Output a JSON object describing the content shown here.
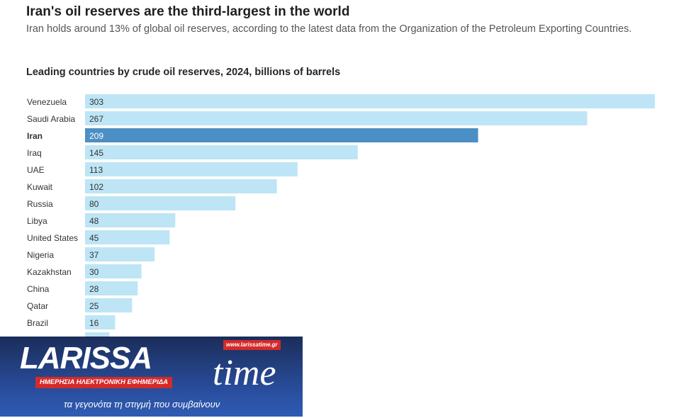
{
  "header": {
    "title": "Iran's oil reserves are the third-largest in the world",
    "subtitle": "Iran holds around 13% of global oil reserves, according to the latest data from the Organization of the Petroleum Exporting Countries."
  },
  "chart_data": {
    "type": "bar",
    "orientation": "horizontal",
    "title": "Leading countries by crude oil reserves, 2024, billions of barrels",
    "categories": [
      "Venezuela",
      "Saudi Arabia",
      "Iran",
      "Iraq",
      "UAE",
      "Kuwait",
      "Russia",
      "Libya",
      "United States",
      "Nigeria",
      "Kazakhstan",
      "China",
      "Qatar",
      "Brazil",
      ""
    ],
    "values": [
      303,
      267,
      209,
      145,
      113,
      102,
      80,
      48,
      45,
      37,
      30,
      28,
      25,
      16,
      13
    ],
    "value_labels": [
      "303",
      "267",
      "209",
      "145",
      "113",
      "102",
      "80",
      "48",
      "45",
      "37",
      "30",
      "28",
      "25",
      "16",
      ""
    ],
    "highlight": "Iran",
    "xlim": [
      0,
      303
    ],
    "colors": {
      "bar": "#bde5f5",
      "highlight": "#4b8fc4",
      "label_highlight": "#ffffff"
    }
  },
  "logo": {
    "name_a": "LARISSA",
    "name_b": "time",
    "website": "www.larissatime.gr",
    "banner": "ΗΜΕΡΗΣΙΑ ΗΛΕΚΤΡΟΝΙΚΗ ΕΦΗΜΕΡΙΔΑ",
    "tagline": "τα γεγονότα τη στιγμή που συμβαίνουν"
  }
}
